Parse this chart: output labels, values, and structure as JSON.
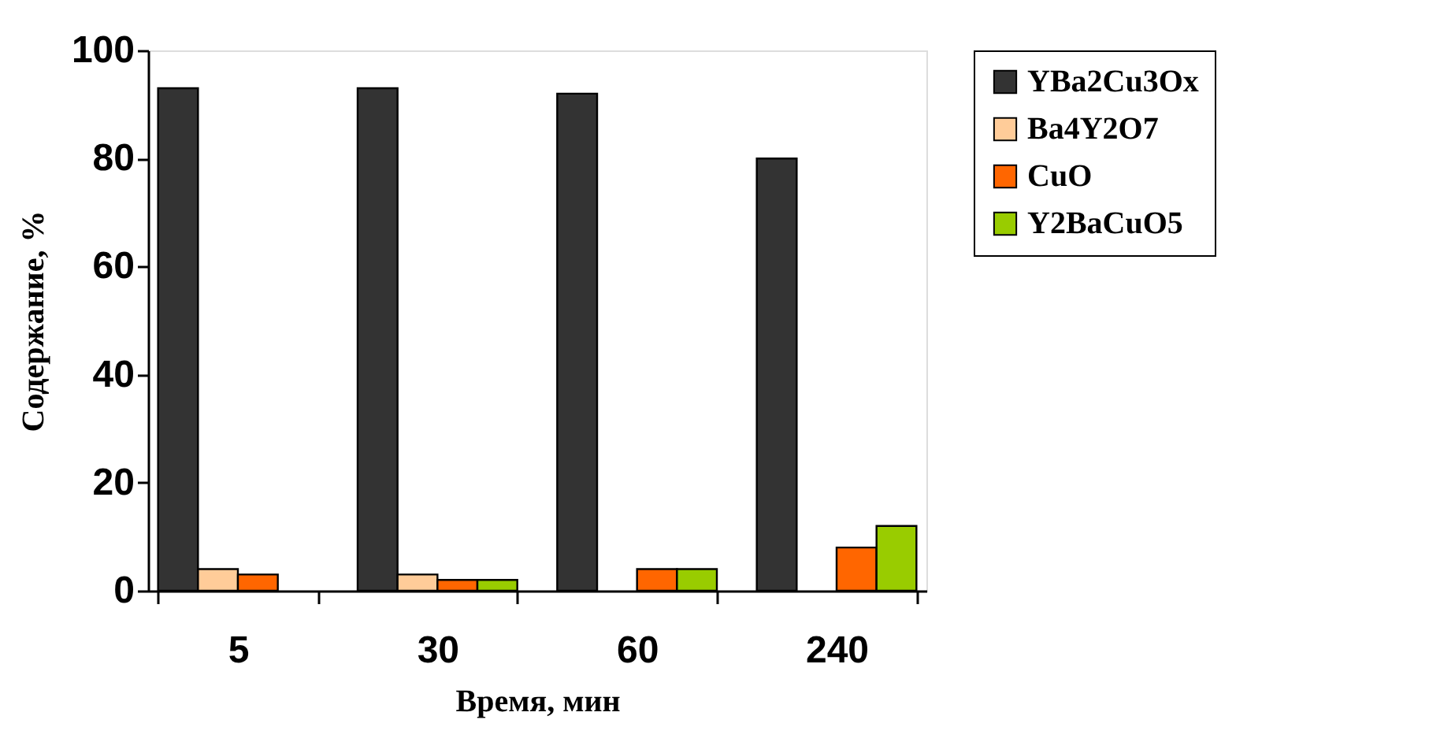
{
  "chart_data": {
    "type": "bar",
    "xlabel": "Время, мин",
    "ylabel": "Содержание, %",
    "categories": [
      "5",
      "30",
      "60",
      "240"
    ],
    "series": [
      {
        "name": "YBa2Cu3Ox",
        "color": "#333333",
        "values": [
          93,
          93,
          92,
          80
        ]
      },
      {
        "name": "Ba4Y2O7",
        "color": "#ffcc99",
        "values": [
          4,
          3,
          null,
          null
        ]
      },
      {
        "name": "CuO",
        "color": "#ff6600",
        "values": [
          3,
          2,
          4,
          8
        ]
      },
      {
        "name": "Y2BaCuO5",
        "color": "#99cc00",
        "values": [
          null,
          2,
          4,
          12
        ]
      }
    ],
    "ylim": [
      0,
      100
    ],
    "yticks": [
      0,
      20,
      40,
      60,
      80,
      100
    ],
    "grid": false,
    "legend": "right"
  }
}
